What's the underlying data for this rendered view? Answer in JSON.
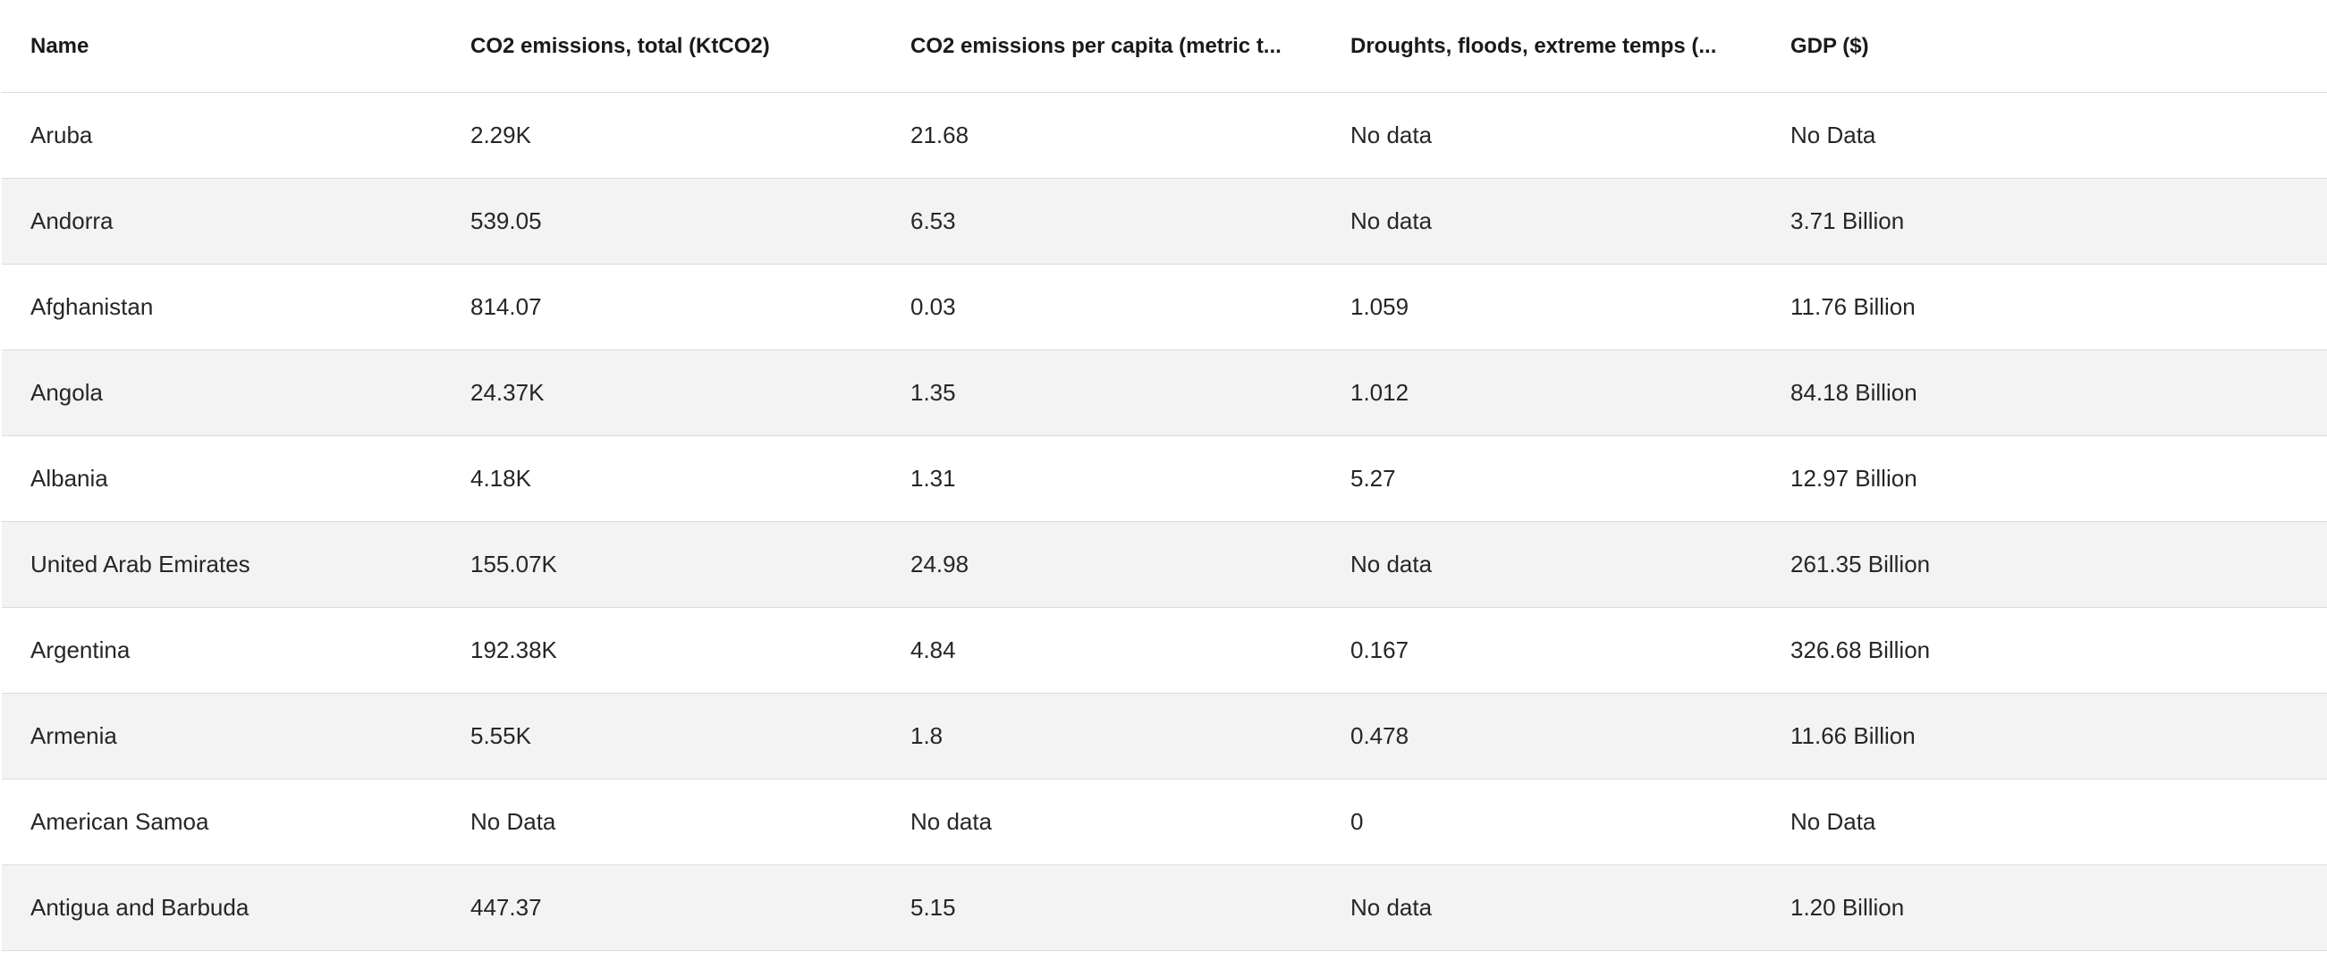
{
  "table": {
    "columns": [
      "Name",
      "CO2 emissions, total (KtCO2)",
      "CO2 emissions per capita (metric t...",
      "Droughts, floods, extreme temps (...",
      "GDP ($)"
    ],
    "rows": [
      {
        "name": "Aruba",
        "co2_total": "2.29K",
        "co2_per_capita": "21.68",
        "droughts": "No data",
        "gdp": "No Data"
      },
      {
        "name": "Andorra",
        "co2_total": "539.05",
        "co2_per_capita": "6.53",
        "droughts": "No data",
        "gdp": "3.71 Billion"
      },
      {
        "name": "Afghanistan",
        "co2_total": "814.07",
        "co2_per_capita": "0.03",
        "droughts": "1.059",
        "gdp": "11.76 Billion"
      },
      {
        "name": "Angola",
        "co2_total": "24.37K",
        "co2_per_capita": "1.35",
        "droughts": "1.012",
        "gdp": "84.18 Billion"
      },
      {
        "name": "Albania",
        "co2_total": "4.18K",
        "co2_per_capita": "1.31",
        "droughts": "5.27",
        "gdp": "12.97 Billion"
      },
      {
        "name": "United Arab Emirates",
        "co2_total": "155.07K",
        "co2_per_capita": "24.98",
        "droughts": "No data",
        "gdp": "261.35 Billion"
      },
      {
        "name": "Argentina",
        "co2_total": "192.38K",
        "co2_per_capita": "4.84",
        "droughts": "0.167",
        "gdp": "326.68 Billion"
      },
      {
        "name": "Armenia",
        "co2_total": "5.55K",
        "co2_per_capita": "1.8",
        "droughts": "0.478",
        "gdp": "11.66 Billion"
      },
      {
        "name": "American Samoa",
        "co2_total": "No Data",
        "co2_per_capita": "No data",
        "droughts": "0",
        "gdp": "No Data"
      },
      {
        "name": "Antigua and Barbuda",
        "co2_total": "447.37",
        "co2_per_capita": "5.15",
        "droughts": "No data",
        "gdp": "1.20 Billion"
      }
    ]
  }
}
